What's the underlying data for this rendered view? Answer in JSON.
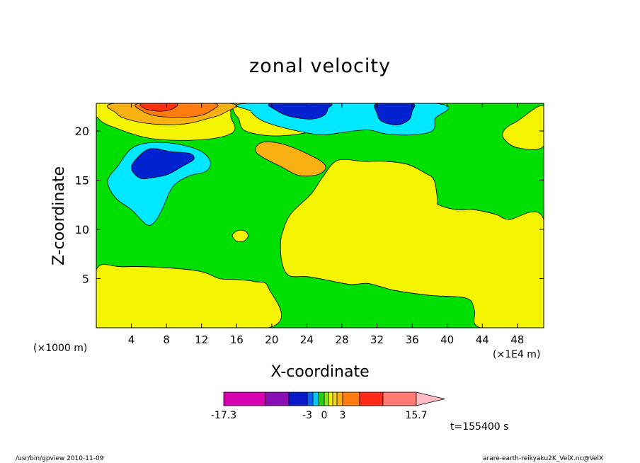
{
  "chart_data": {
    "type": "contour",
    "title": "zonal velocity",
    "xlabel": "X-coordinate",
    "ylabel": "Z-coordinate",
    "x_unit_label": "(×1000 m)",
    "x_scale_label": "(×1E4 m)",
    "time_label": "t=155400 s",
    "xlim": [
      0,
      51
    ],
    "ylim": [
      0,
      22.8
    ],
    "x_ticks": [
      4,
      8,
      12,
      16,
      20,
      24,
      28,
      32,
      36,
      40,
      44,
      48
    ],
    "y_ticks": [
      5,
      10,
      15,
      20
    ],
    "levels": [
      -17.3,
      -3,
      0,
      3,
      15.7
    ],
    "colorbar": {
      "colors": [
        "#d800b0",
        "#8a0fb4",
        "#0a1acb",
        "#0a5df5",
        "#00c8f4",
        "#26d018",
        "#87e61c",
        "#f2f200",
        "#f4d420",
        "#f9b012",
        "#ff7d10",
        "#ff2b18",
        "#ff7b73",
        "#ffbcc4"
      ],
      "tick_labels": [
        "-17.3",
        "-3",
        "0",
        "3",
        "15.7"
      ],
      "tick_values": [
        -17.3,
        -3,
        0,
        3,
        15.7
      ]
    },
    "regions": [
      {
        "name": "green",
        "color": "#00e000",
        "points": [
          [
            0,
            5.9
          ],
          [
            3,
            6.2
          ],
          [
            8,
            6.1
          ],
          [
            12,
            5.7
          ],
          [
            14,
            5
          ],
          [
            16,
            4.9
          ],
          [
            18,
            4.7
          ],
          [
            19.6,
            4.1
          ],
          [
            19.6,
            0
          ],
          [
            43.8,
            0
          ],
          [
            43.1,
            1.8
          ],
          [
            42.2,
            3
          ],
          [
            38,
            3.3
          ],
          [
            34,
            3.8
          ],
          [
            31,
            4.5
          ],
          [
            29,
            4.4
          ],
          [
            26,
            4.9
          ],
          [
            24,
            5.2
          ],
          [
            22,
            5.3
          ],
          [
            21.2,
            6.5
          ],
          [
            21,
            8.5
          ],
          [
            21.3,
            9.9
          ],
          [
            22.2,
            11.6
          ],
          [
            24.5,
            13.6
          ],
          [
            25.8,
            15.3
          ],
          [
            27.5,
            17
          ],
          [
            30.5,
            16.9
          ],
          [
            33,
            16.9
          ],
          [
            35.5,
            16.6
          ],
          [
            37.5,
            15.7
          ],
          [
            38.5,
            15
          ],
          [
            38.9,
            13
          ],
          [
            39,
            12.5
          ],
          [
            41,
            12
          ],
          [
            43,
            12
          ],
          [
            45.6,
            11.5
          ],
          [
            47,
            11
          ],
          [
            51,
            11
          ],
          [
            51,
            18.5
          ],
          [
            48,
            18.3
          ],
          [
            46.4,
            19.3
          ],
          [
            46.6,
            20.2
          ],
          [
            48,
            21
          ],
          [
            51,
            22.5
          ],
          [
            51,
            22.8
          ],
          [
            32,
            22.8
          ],
          [
            26,
            20.3
          ],
          [
            21,
            19.5
          ],
          [
            17,
            20
          ],
          [
            16,
            21.5
          ],
          [
            13.5,
            22.8
          ],
          [
            0,
            22.8
          ]
        ]
      },
      {
        "name": "yellow-band",
        "color": "#f4f400",
        "points": [
          [
            0,
            22.8
          ],
          [
            0.3,
            21.2
          ],
          [
            2.5,
            20.2
          ],
          [
            6.5,
            19.2
          ],
          [
            12,
            19.1
          ],
          [
            15.5,
            19.8
          ],
          [
            15.4,
            21.2
          ],
          [
            13.5,
            22.8
          ]
        ]
      },
      {
        "name": "yellow-bottom",
        "color": "#f4f400",
        "points": [
          [
            0,
            0
          ],
          [
            19.6,
            0
          ],
          [
            19.6,
            4.1
          ],
          [
            18,
            4.7
          ],
          [
            16,
            4.9
          ],
          [
            14,
            5
          ],
          [
            12,
            5.7
          ],
          [
            8,
            6.1
          ],
          [
            3,
            6.2
          ],
          [
            0,
            5.9
          ]
        ]
      },
      {
        "name": "yellow-right",
        "color": "#f4f400",
        "points": [
          [
            21.2,
            6.5
          ],
          [
            22,
            5.3
          ],
          [
            24,
            5.2
          ],
          [
            26,
            4.9
          ],
          [
            29,
            4.4
          ],
          [
            31,
            4.5
          ],
          [
            34,
            3.8
          ],
          [
            38,
            3.3
          ],
          [
            42.2,
            3
          ],
          [
            43.1,
            1.8
          ],
          [
            43.8,
            0
          ],
          [
            51,
            0
          ],
          [
            51,
            11
          ],
          [
            47,
            11
          ],
          [
            45.6,
            11.5
          ],
          [
            43,
            12
          ],
          [
            41,
            12
          ],
          [
            39,
            12.5
          ],
          [
            38.9,
            13
          ],
          [
            38.5,
            15
          ],
          [
            37.5,
            15.7
          ],
          [
            35.5,
            16.6
          ],
          [
            33,
            16.9
          ],
          [
            30.5,
            16.9
          ],
          [
            27.5,
            17
          ],
          [
            25.8,
            15.3
          ],
          [
            24.5,
            13.6
          ],
          [
            22.2,
            11.6
          ],
          [
            21.3,
            9.9
          ],
          [
            21,
            8.5
          ]
        ]
      },
      {
        "name": "yellow-right-top",
        "color": "#f4f400",
        "points": [
          [
            51,
            22.5
          ],
          [
            48,
            21
          ],
          [
            46.6,
            20.2
          ],
          [
            46.4,
            19.3
          ],
          [
            48,
            18.3
          ],
          [
            51,
            18.5
          ]
        ]
      },
      {
        "name": "yellow-oval",
        "color": "#f4f400",
        "points": [
          [
            15.5,
            9.4
          ],
          [
            16.2,
            9.9
          ],
          [
            17,
            9.8
          ],
          [
            17.3,
            9.3
          ],
          [
            16.8,
            8.8
          ],
          [
            16,
            8.8
          ]
        ]
      },
      {
        "name": "orange-top",
        "color": "#f9b012",
        "points": [
          [
            2.2,
            22.8
          ],
          [
            2.3,
            21.8
          ],
          [
            3.5,
            21.2
          ],
          [
            6.5,
            20.7
          ],
          [
            10,
            20.7
          ],
          [
            12.5,
            21.2
          ],
          [
            14.5,
            21.8
          ],
          [
            15.1,
            22.8
          ]
        ]
      },
      {
        "name": "deep-orange-top",
        "color": "#ff7d10",
        "points": [
          [
            5,
            22.8
          ],
          [
            5.3,
            22
          ],
          [
            7,
            21.5
          ],
          [
            9.5,
            21.4
          ],
          [
            11.5,
            21.5
          ],
          [
            13,
            22
          ],
          [
            13.3,
            22.8
          ]
        ]
      },
      {
        "name": "red-top",
        "color": "#ff3010",
        "points": [
          [
            5.2,
            22.8
          ],
          [
            5.7,
            22.2
          ],
          [
            7.5,
            22
          ],
          [
            8.8,
            22.3
          ],
          [
            9,
            22.8
          ]
        ]
      },
      {
        "name": "orange-mid",
        "color": "#f9b012",
        "points": [
          [
            18.4,
            18.6
          ],
          [
            19.5,
            18.9
          ],
          [
            21.5,
            18.6
          ],
          [
            24,
            17.7
          ],
          [
            25.8,
            16.8
          ],
          [
            26.1,
            16.1
          ],
          [
            25,
            15.5
          ],
          [
            23,
            15.5
          ],
          [
            21,
            16.4
          ],
          [
            19,
            17.3
          ],
          [
            18.2,
            17.9
          ]
        ]
      },
      {
        "name": "cyan-left",
        "color": "#00e8ff",
        "points": [
          [
            1.3,
            14.9
          ],
          [
            2.5,
            16.5
          ],
          [
            4,
            18.2
          ],
          [
            6,
            18.8
          ],
          [
            9,
            18.7
          ],
          [
            11.8,
            18
          ],
          [
            13,
            16.9
          ],
          [
            12.5,
            15.9
          ],
          [
            10.5,
            15.4
          ],
          [
            8.7,
            14.3
          ],
          [
            7.5,
            12
          ],
          [
            6.6,
            10.7
          ],
          [
            5.7,
            10.5
          ],
          [
            4,
            12
          ],
          [
            2.2,
            13.2
          ]
        ]
      },
      {
        "name": "blue-left",
        "color": "#0022d0",
        "points": [
          [
            4,
            16.2
          ],
          [
            4.7,
            17.3
          ],
          [
            6.2,
            18.2
          ],
          [
            8.5,
            17.9
          ],
          [
            10.7,
            17.7
          ],
          [
            11.1,
            17.1
          ],
          [
            10,
            16.5
          ],
          [
            8.2,
            15.6
          ],
          [
            6.7,
            15.3
          ],
          [
            5,
            15.2
          ]
        ]
      },
      {
        "name": "cyan-top",
        "color": "#00e8ff",
        "points": [
          [
            17.5,
            22.8
          ],
          [
            17.6,
            22
          ],
          [
            19,
            21
          ],
          [
            21.5,
            20.3
          ],
          [
            24,
            19.8
          ],
          [
            26,
            19.6
          ],
          [
            28.5,
            19.9
          ],
          [
            31,
            20.1
          ],
          [
            33,
            19.7
          ],
          [
            36,
            19.6
          ],
          [
            38.3,
            20
          ],
          [
            38.6,
            21.2
          ],
          [
            38.6,
            22.8
          ]
        ]
      },
      {
        "name": "blue-top-left",
        "color": "#0022d0",
        "points": [
          [
            20,
            22.8
          ],
          [
            20.5,
            22.1
          ],
          [
            22,
            21.5
          ],
          [
            24.5,
            21.2
          ],
          [
            26,
            21.6
          ],
          [
            26.4,
            22.3
          ],
          [
            26.4,
            22.8
          ]
        ]
      },
      {
        "name": "blue-top-right",
        "color": "#0022d0",
        "points": [
          [
            32,
            22.8
          ],
          [
            32,
            21.8
          ],
          [
            32.5,
            21
          ],
          [
            34.2,
            20.6
          ],
          [
            35.6,
            21.1
          ],
          [
            36,
            22
          ],
          [
            36,
            22.8
          ]
        ]
      }
    ]
  },
  "footer": {
    "left": "/usr/bin/gpview   2010-11-09",
    "right": "arare-earth-reikyaku2K_VelX.nc@VelX"
  }
}
